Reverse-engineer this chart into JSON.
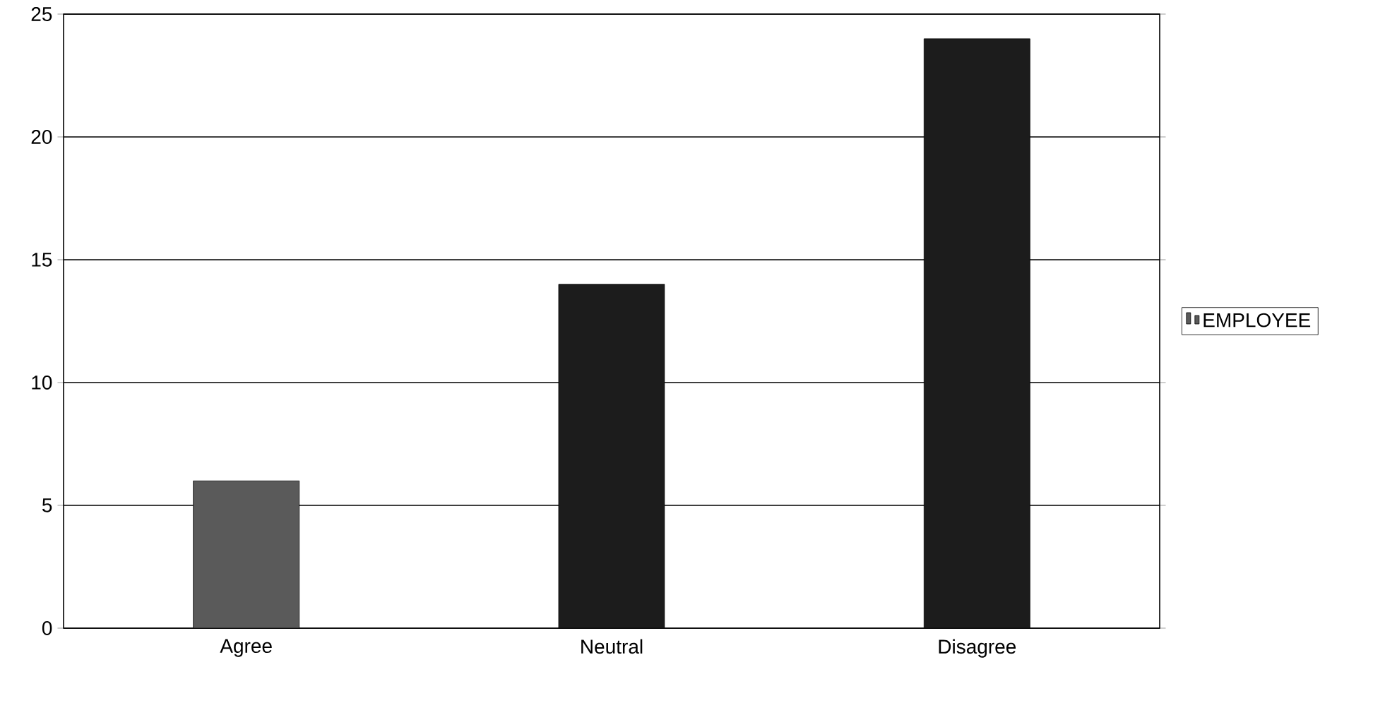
{
  "chart_data": {
    "type": "bar",
    "categories": [
      "Agree",
      "Neutral",
      "Disagree"
    ],
    "series": [
      {
        "name": "EMPLOYEE",
        "colors": [
          "#5a5a5a",
          "#1c1c1c",
          "#1c1c1c"
        ],
        "values": [
          6,
          14,
          24
        ]
      }
    ],
    "ylim": [
      0,
      25
    ],
    "yticks": [
      0,
      5,
      10,
      15,
      20,
      25
    ],
    "grid": "y",
    "legend": "right"
  }
}
